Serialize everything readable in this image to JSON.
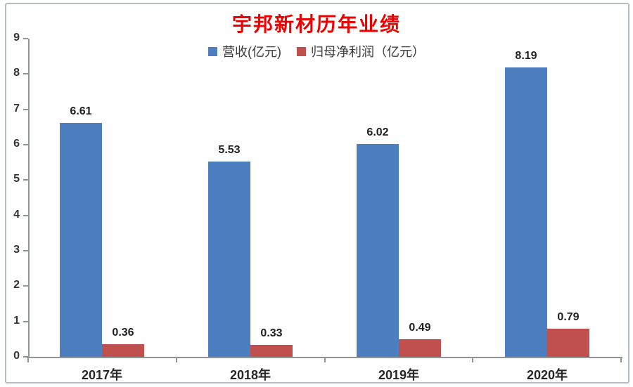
{
  "title": {
    "text": "宇邦新材历年业绩",
    "color": "#ee0000"
  },
  "legend": {
    "items": [
      {
        "label": "营收(亿元)",
        "color": "#4d7ec0"
      },
      {
        "label": "归母净利润（亿元）",
        "color": "#c0504d"
      }
    ]
  },
  "axis_color": "#8f9498",
  "chart_data": {
    "type": "bar",
    "title": "宇邦新材历年业绩",
    "categories": [
      "2017年",
      "2018年",
      "2019年",
      "2020年"
    ],
    "series": [
      {
        "name": "营收(亿元)",
        "color": "#4d7ec0",
        "values": [
          6.61,
          5.53,
          6.02,
          8.19
        ]
      },
      {
        "name": "归母净利润（亿元）",
        "color": "#c0504d",
        "values": [
          0.36,
          0.33,
          0.49,
          0.79
        ]
      }
    ],
    "xlabel": "",
    "ylabel": "",
    "ylim": [
      0,
      9
    ],
    "yticks": [
      0,
      1,
      2,
      3,
      4,
      5,
      6,
      7,
      8,
      9
    ],
    "grid": false,
    "legend_position": "top-center",
    "data_labels": true,
    "data_label_format": "0.00"
  }
}
